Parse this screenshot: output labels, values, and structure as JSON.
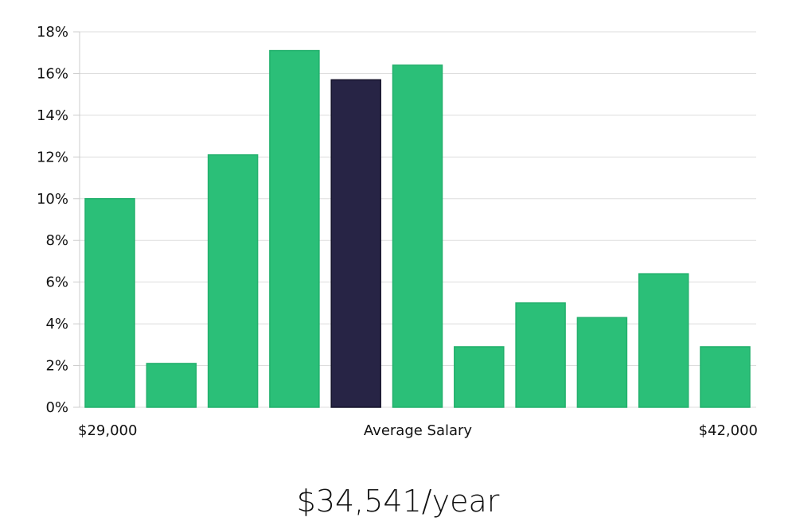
{
  "chart_data": {
    "type": "bar",
    "title": "",
    "xlabel": "Average Salary",
    "ylabel": "",
    "x_start_label": "$29,000",
    "x_end_label": "$42,000",
    "ylim": [
      0,
      18
    ],
    "yticks": [
      0,
      2,
      4,
      6,
      8,
      10,
      12,
      14,
      16,
      18
    ],
    "ytick_labels": [
      "0%",
      "2%",
      "4%",
      "6%",
      "8%",
      "10%",
      "12%",
      "14%",
      "16%",
      "18%"
    ],
    "values": [
      10.0,
      2.1,
      12.1,
      17.1,
      15.7,
      16.4,
      2.9,
      5.0,
      4.3,
      6.4,
      2.9
    ],
    "highlight_index": 4,
    "colors": {
      "bar": "#2bbf78",
      "highlight": "#272445",
      "grid": "#dddddd"
    },
    "grid": true
  },
  "summary": {
    "salary_text": "$34,541/year"
  }
}
